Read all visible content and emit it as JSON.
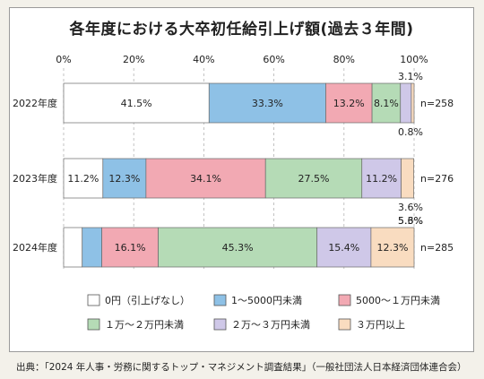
{
  "chart_data": {
    "type": "bar",
    "orientation": "horizontal",
    "stacked": true,
    "title": "各年度における大卒初任給引上げ額(過去３年間)",
    "xlim": [
      0,
      100
    ],
    "x_ticks": [
      "0%",
      "20%",
      "40%",
      "60%",
      "80%",
      "100%"
    ],
    "categories": [
      "2022年度",
      "2023年度",
      "2024年度"
    ],
    "n_labels": [
      "n=258",
      "n=276",
      "n=285"
    ],
    "series": [
      {
        "name": "0円（引上げなし）",
        "color": "#ffffff",
        "values": [
          41.5,
          11.2,
          5.3
        ],
        "labels": [
          "41.5%",
          "11.2%",
          "5.3%"
        ]
      },
      {
        "name": "1～5000円未満",
        "color": "#8ec1e6",
        "values": [
          33.3,
          12.3,
          5.6
        ],
        "labels": [
          "33.3%",
          "12.3%",
          "5.6%"
        ]
      },
      {
        "name": "5000～１万円未満",
        "color": "#f2a9b3",
        "values": [
          13.2,
          34.1,
          16.1
        ],
        "labels": [
          "13.2%",
          "34.1%",
          "16.1%"
        ]
      },
      {
        "name": "１万～２万円未満",
        "color": "#b5dbb6",
        "values": [
          8.1,
          27.5,
          45.3
        ],
        "labels": [
          "8.1%",
          "27.5%",
          "45.3%"
        ]
      },
      {
        "name": "２万～３万円未満",
        "color": "#cfc8e8",
        "values": [
          3.1,
          11.2,
          15.4
        ],
        "labels": [
          "3.1%",
          "11.2%",
          "15.4%"
        ]
      },
      {
        "name": "３万円以上",
        "color": "#f9dcc0",
        "values": [
          0.8,
          3.6,
          12.3
        ],
        "labels": [
          "0.8%",
          "3.6%",
          "12.3%"
        ]
      }
    ],
    "legend": "bottom",
    "grid": true
  },
  "source_note": "出典：「2024 年人事・労務に関するトップ・マネジメント調査結果」（一般社団法人日本経済団体連合会）"
}
